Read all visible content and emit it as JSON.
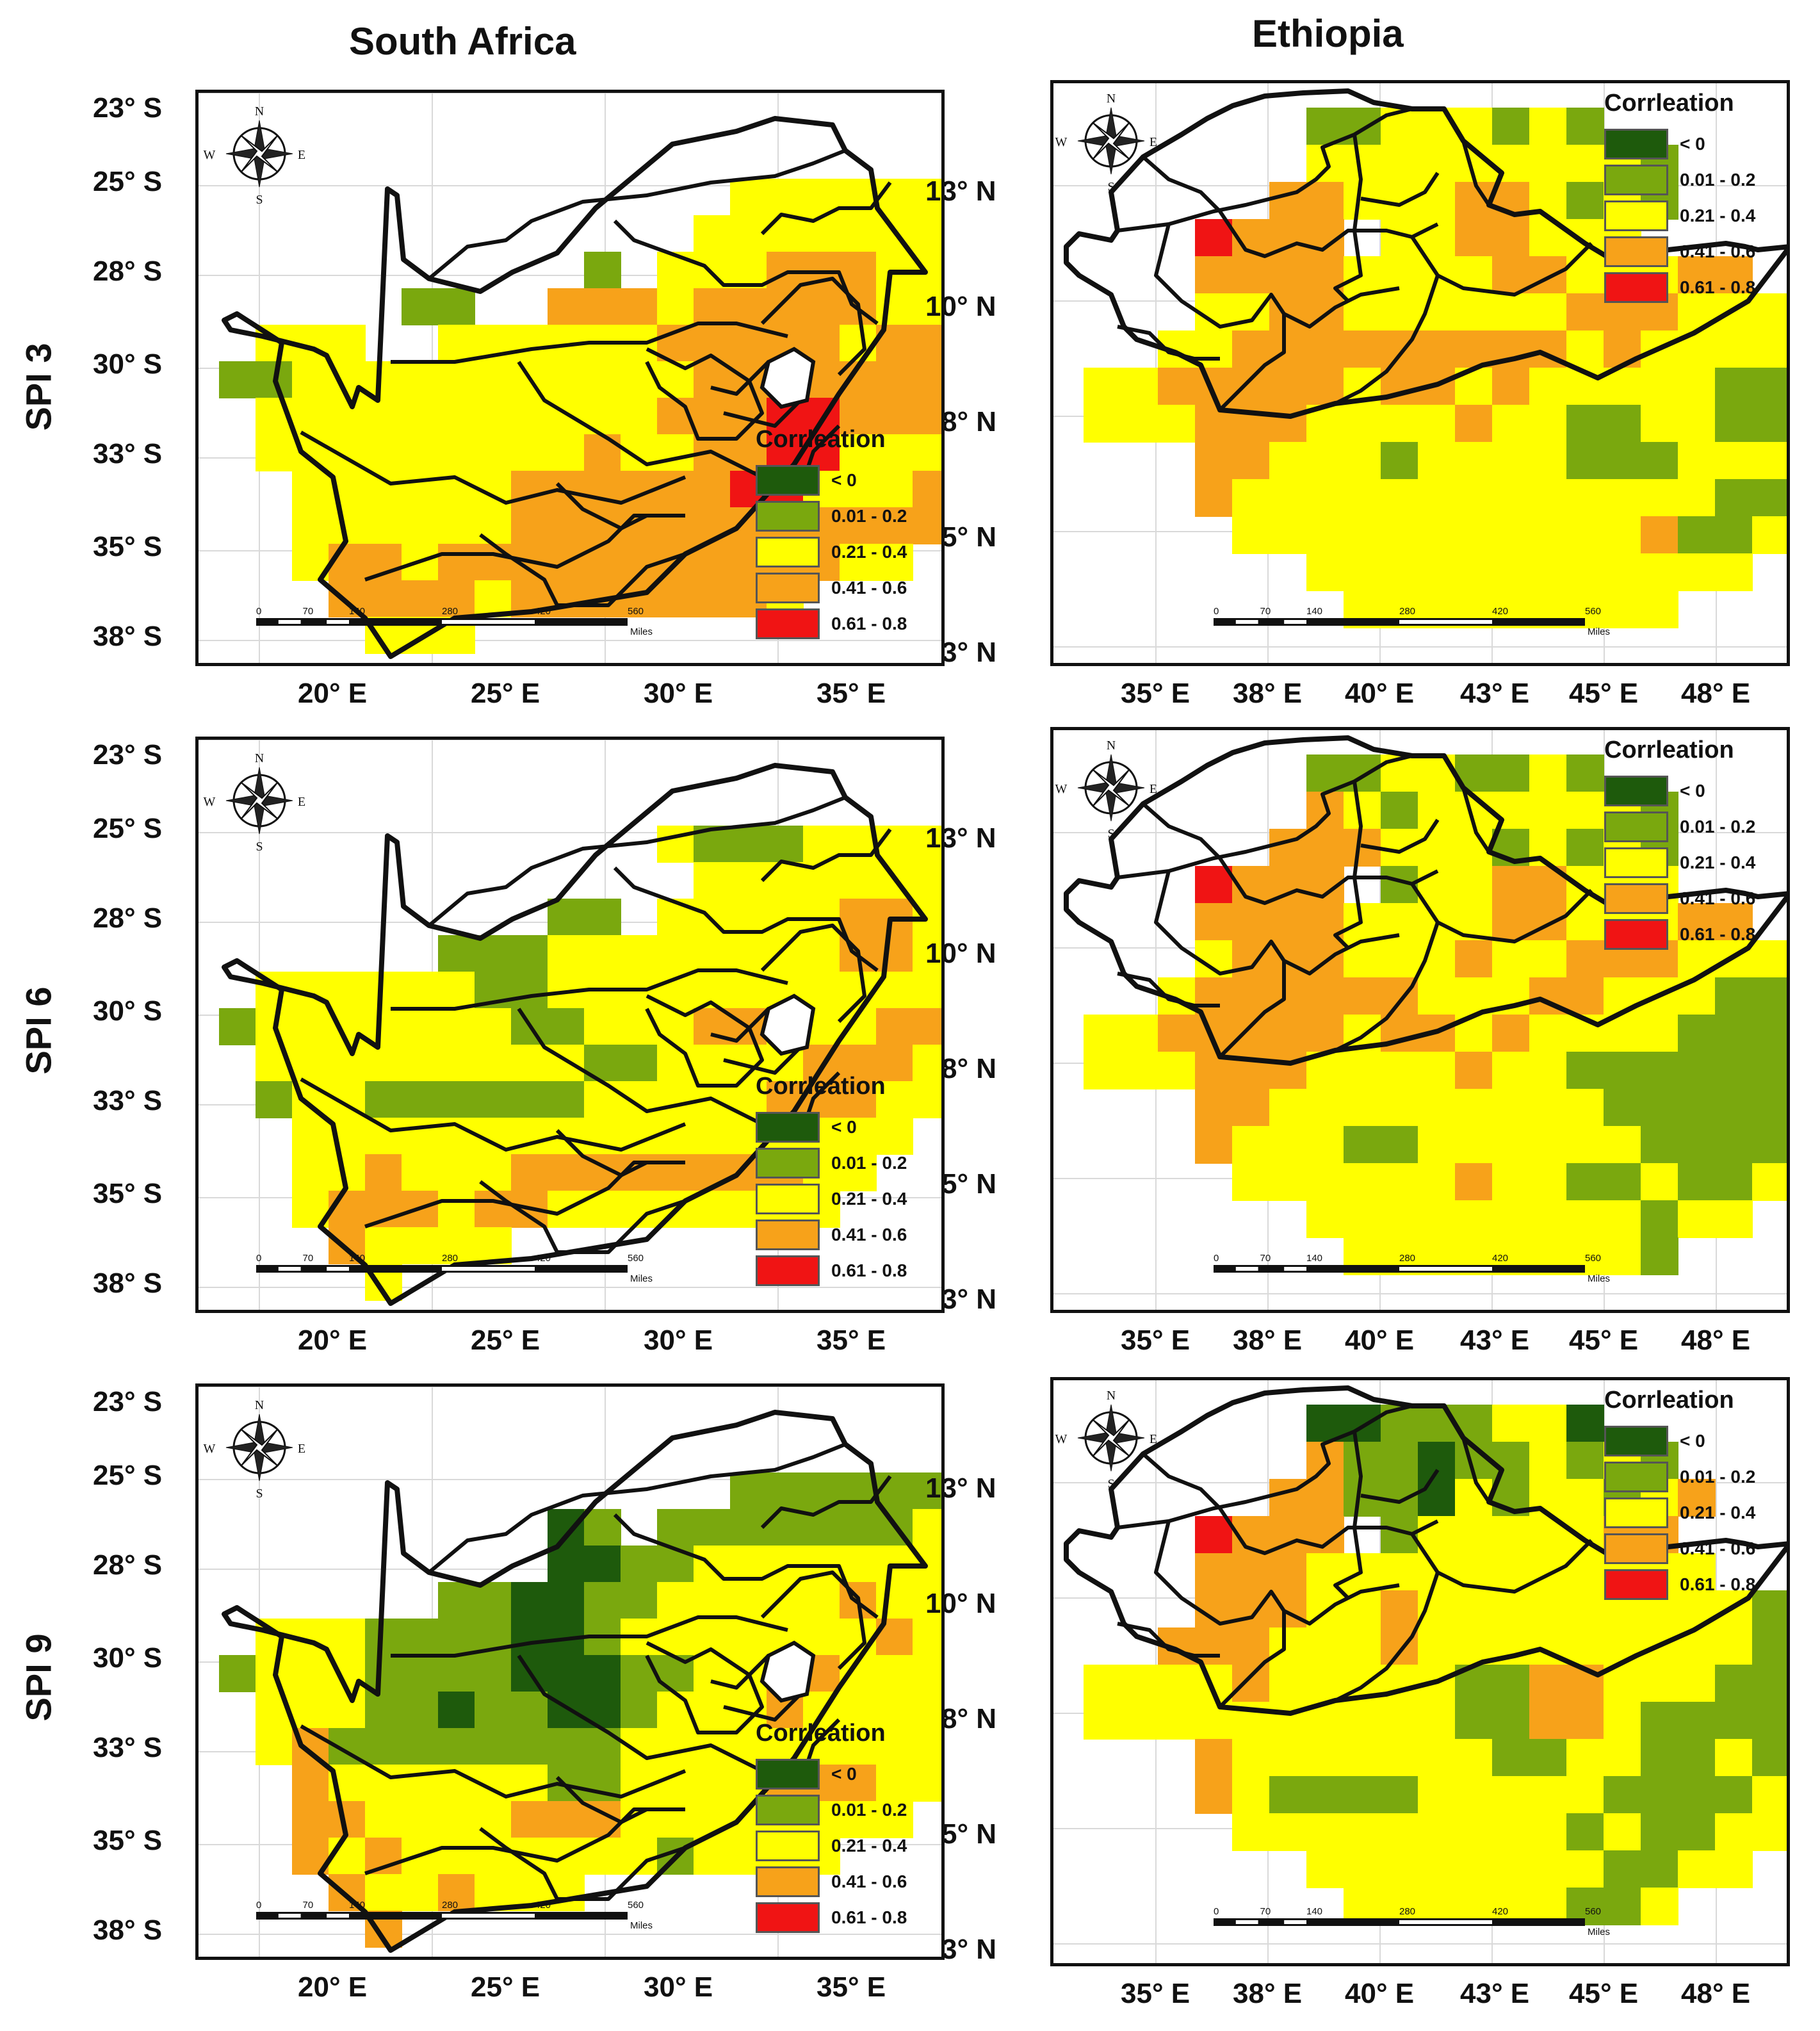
{
  "columns": [
    "South Africa",
    "Ethiopia"
  ],
  "rows": [
    "SPI 3",
    "SPI 6",
    "SPI 9"
  ],
  "south_africa": {
    "lat_labels": [
      "23° S",
      "25° S",
      "28° S",
      "30° S",
      "33° S",
      "35° S",
      "38° S"
    ],
    "lon_labels": [
      "20° E",
      "25° E",
      "30° E",
      "35° E"
    ]
  },
  "ethiopia": {
    "lat_labels": [
      "13° N",
      "10° N",
      "8° N",
      "5° N",
      "3° N"
    ],
    "lon_labels": [
      "35° E",
      "38° E",
      "40° E",
      "43° E",
      "45° E",
      "48° E"
    ]
  },
  "legend": {
    "title": "Corrleation",
    "classes": [
      {
        "label": "< 0",
        "color": "#1e5a0c"
      },
      {
        "label": "0.01 - 0.2",
        "color": "#7aa80e"
      },
      {
        "label": "0.21 - 0.4",
        "color": "#ffff00"
      },
      {
        "label": "0.41 - 0.6",
        "color": "#f7a21a"
      },
      {
        "label": "0.61 - 0.8",
        "color": "#f01414"
      }
    ]
  },
  "compass": {
    "n": "N",
    "s": "S",
    "e": "E",
    "w": "W"
  },
  "scalebar": {
    "ticks": [
      "0",
      "70",
      "140",
      "280",
      "420",
      "560"
    ],
    "unit": "Miles"
  }
}
